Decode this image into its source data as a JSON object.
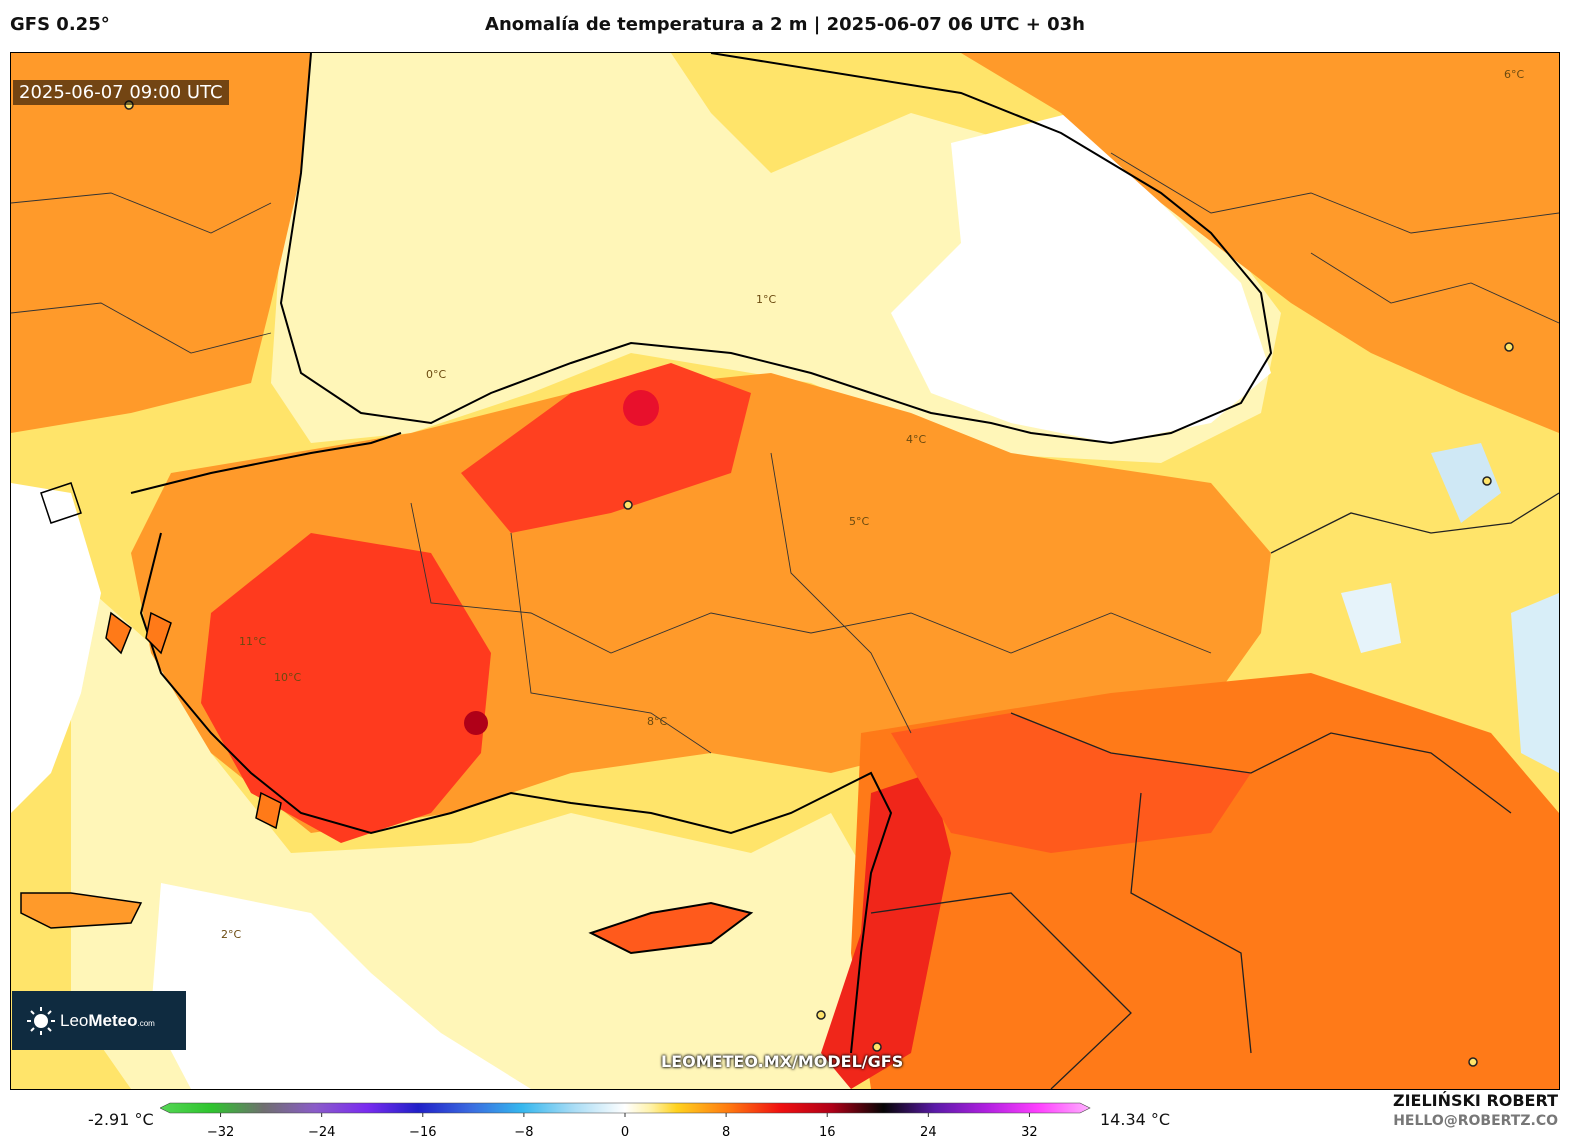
{
  "header": {
    "model": "GFS 0.25°",
    "title": "Anomalía de temperatura a 2 m | 2025-06-07 06 UTC + 03h"
  },
  "map": {
    "valid_time": "2025-06-07 09:00 UTC",
    "watermark": "LEOMETEO.MX/MODEL/GFS",
    "logo": {
      "name_light": "Leo",
      "name_bold": "Meteo",
      "suffix": ".com"
    },
    "isotherm_labels": [
      "0°C",
      "1°C",
      "2°C",
      "4°C",
      "5°C",
      "6°C",
      "8°C",
      "10°C",
      "11°C"
    ]
  },
  "colorbar": {
    "min_label": "-2.91 °C",
    "max_label": "14.34 °C",
    "ticks": [
      "−32",
      "−24",
      "−16",
      "−8",
      "0",
      "8",
      "16",
      "24",
      "32"
    ],
    "range": [
      -36,
      36
    ],
    "stops": [
      {
        "v": -36,
        "c": "#55d655"
      },
      {
        "v": -32,
        "c": "#2ec42e"
      },
      {
        "v": -28,
        "c": "#6f6f6f"
      },
      {
        "v": -24,
        "c": "#8a5cc8"
      },
      {
        "v": -20,
        "c": "#7a2cf0"
      },
      {
        "v": -16,
        "c": "#2020c8"
      },
      {
        "v": -12,
        "c": "#3a6ae0"
      },
      {
        "v": -8,
        "c": "#35b7ee"
      },
      {
        "v": -4,
        "c": "#a8dcf5"
      },
      {
        "v": 0,
        "c": "#ffffff"
      },
      {
        "v": 2,
        "c": "#fff2a8"
      },
      {
        "v": 4,
        "c": "#ffd21f"
      },
      {
        "v": 8,
        "c": "#ff7a10"
      },
      {
        "v": 12,
        "c": "#f01010"
      },
      {
        "v": 16,
        "c": "#b00018"
      },
      {
        "v": 20,
        "c": "#050505"
      },
      {
        "v": 24,
        "c": "#5a1aa8"
      },
      {
        "v": 28,
        "c": "#b020e0"
      },
      {
        "v": 32,
        "c": "#ff40ff"
      },
      {
        "v": 36,
        "c": "#ffb0ff"
      }
    ]
  },
  "author": {
    "name": "ZIELIŃSKI ROBERT",
    "email": "HELLO@ROBERTZ.CO"
  }
}
